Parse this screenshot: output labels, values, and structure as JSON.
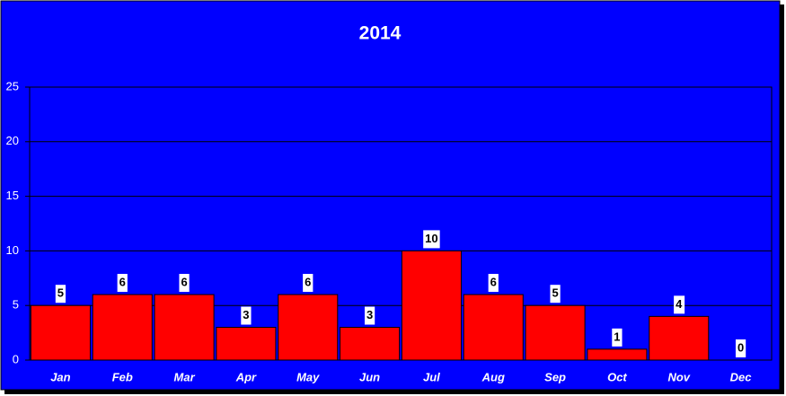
{
  "chart_data": {
    "type": "bar",
    "title": "2014",
    "categories": [
      "Jan",
      "Feb",
      "Mar",
      "Apr",
      "May",
      "Jun",
      "Jul",
      "Aug",
      "Sep",
      "Oct",
      "Nov",
      "Dec"
    ],
    "values": [
      5,
      6,
      6,
      3,
      6,
      3,
      10,
      6,
      5,
      1,
      4,
      0
    ],
    "color": "#ff0000",
    "ylim": [
      0,
      25
    ],
    "yticks": [
      0,
      5,
      10,
      15,
      20,
      25
    ],
    "grid": true
  }
}
